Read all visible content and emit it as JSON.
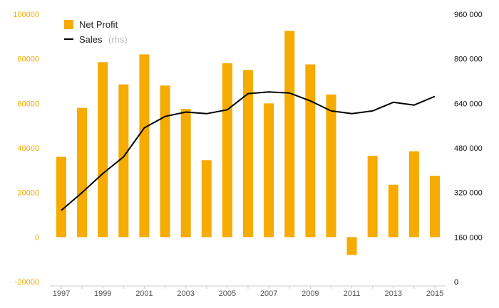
{
  "chart_data": {
    "type": "bar",
    "x": [
      "1997",
      "1998",
      "1999",
      "2000",
      "2001",
      "2002",
      "2003",
      "2004",
      "2005",
      "2006",
      "2007",
      "2008",
      "2009",
      "2010",
      "2011",
      "2012",
      "2013",
      "2014",
      "2015"
    ],
    "x_tick_labels": [
      "1997",
      "1999",
      "2001",
      "2003",
      "2005",
      "2007",
      "2009",
      "2011",
      "2013",
      "2015"
    ],
    "series": [
      {
        "name": "Net Profit",
        "type": "bar",
        "axis": "left",
        "color": "#f5ab00",
        "values": [
          36000,
          58000,
          78500,
          68500,
          82000,
          68000,
          57500,
          34500,
          78000,
          75000,
          60000,
          92500,
          77500,
          64000,
          -8000,
          36500,
          23500,
          38500,
          27500
        ]
      },
      {
        "name": "Sales",
        "name_suffix": "(rhs)",
        "type": "line",
        "axis": "right",
        "color": "#000000",
        "values": [
          256000,
          320000,
          388000,
          448000,
          552000,
          593000,
          609000,
          603000,
          617000,
          675000,
          681000,
          677000,
          649000,
          613000,
          603000,
          613000,
          644000,
          634000,
          665000
        ]
      }
    ],
    "y_left": {
      "range": [
        -20000,
        100000
      ],
      "ticks": [
        -20000,
        0,
        20000,
        40000,
        60000,
        80000,
        100000
      ],
      "tick_labels": [
        "-20000",
        "0",
        "20000",
        "40000",
        "60000",
        "80000",
        "100000"
      ],
      "color": "#f5ab00"
    },
    "y_right": {
      "range": [
        0,
        960000
      ],
      "ticks": [
        0,
        160000,
        320000,
        480000,
        640000,
        800000,
        960000
      ],
      "tick_labels": [
        "0",
        "160 000",
        "320 000",
        "480 000",
        "640 000",
        "800 000",
        "960 000"
      ],
      "color": "#111111"
    },
    "legend_position": "top-left",
    "grid": false,
    "title": "",
    "xlabel": "",
    "ylabel": ""
  }
}
